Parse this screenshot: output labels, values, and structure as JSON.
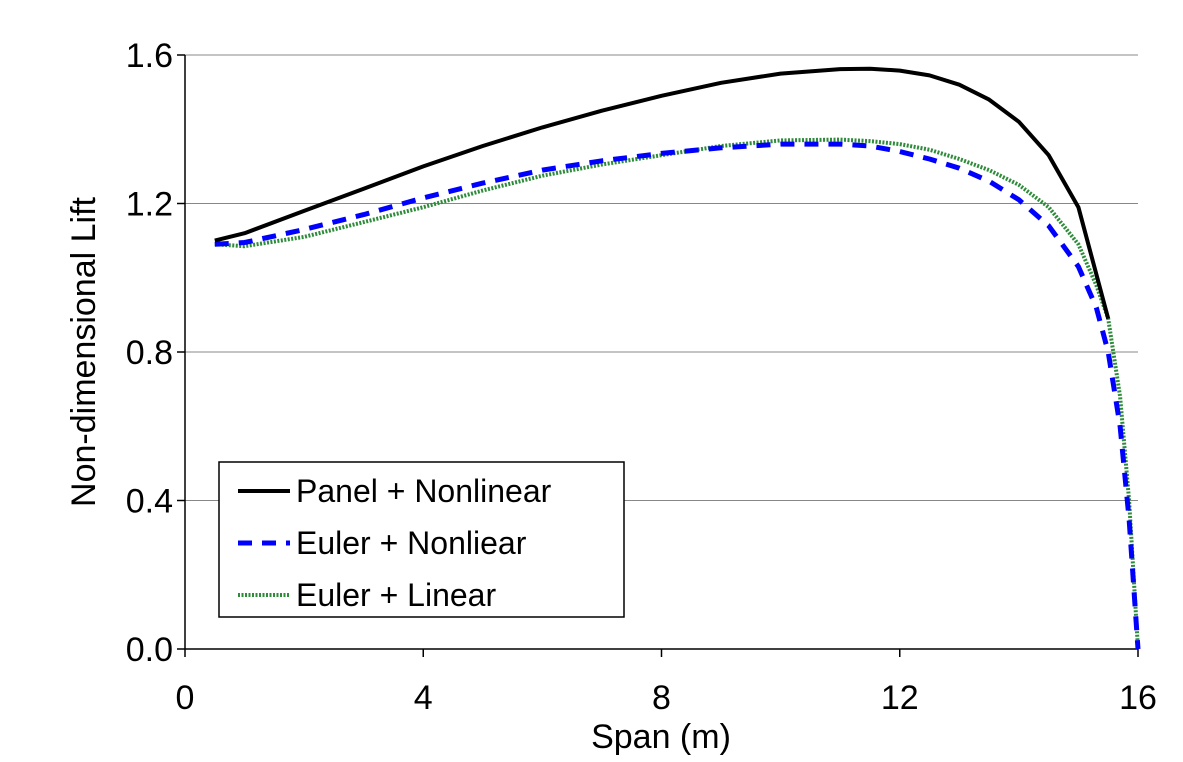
{
  "chart_data": {
    "type": "line",
    "xlabel": "Span (m)",
    "ylabel": "Non-dimensional Lift",
    "xlim": [
      0,
      16
    ],
    "ylim": [
      0,
      1.6
    ],
    "xticks": [
      "0",
      "4",
      "8",
      "12",
      "16"
    ],
    "yticks": [
      "0.0",
      "0.4",
      "0.8",
      "1.2",
      "1.6"
    ],
    "grid": "horizontal",
    "legend_position": "bottom-left",
    "series": [
      {
        "name": "Panel + Nonlinear",
        "color": "#000000",
        "style": "solid",
        "x": [
          0.5,
          1.0,
          2.0,
          3.0,
          4.0,
          5.0,
          6.0,
          7.0,
          8.0,
          9.0,
          10.0,
          11.0,
          11.5,
          12.0,
          12.5,
          13.0,
          13.5,
          14.0,
          14.5,
          15.0,
          15.5
        ],
        "y": [
          1.1,
          1.12,
          1.18,
          1.24,
          1.3,
          1.355,
          1.405,
          1.45,
          1.49,
          1.525,
          1.55,
          1.562,
          1.563,
          1.558,
          1.545,
          1.52,
          1.48,
          1.42,
          1.33,
          1.19,
          0.89
        ]
      },
      {
        "name": "Euler + Nonliear",
        "color": "#0000ff",
        "style": "dashed",
        "x": [
          0.5,
          1.0,
          2.0,
          3.0,
          4.0,
          5.0,
          6.0,
          7.0,
          8.0,
          9.0,
          10.0,
          11.0,
          11.5,
          12.0,
          12.5,
          13.0,
          13.5,
          14.0,
          14.5,
          15.0,
          15.3,
          15.5,
          15.7,
          15.85,
          16.0
        ],
        "y": [
          1.09,
          1.095,
          1.13,
          1.17,
          1.215,
          1.255,
          1.29,
          1.315,
          1.335,
          1.35,
          1.36,
          1.36,
          1.355,
          1.34,
          1.32,
          1.295,
          1.26,
          1.21,
          1.14,
          1.03,
          0.92,
          0.8,
          0.6,
          0.35,
          0.0
        ]
      },
      {
        "name": "Euler + Linear",
        "color": "#2e8b3a",
        "style": "textured",
        "x": [
          0.5,
          1.0,
          2.0,
          3.0,
          4.0,
          5.0,
          6.0,
          7.0,
          8.0,
          9.0,
          10.0,
          11.0,
          11.5,
          12.0,
          12.5,
          13.0,
          13.5,
          14.0,
          14.5,
          15.0,
          15.3,
          15.5,
          15.7,
          15.85,
          16.0
        ],
        "y": [
          1.09,
          1.085,
          1.11,
          1.15,
          1.19,
          1.235,
          1.275,
          1.305,
          1.33,
          1.355,
          1.37,
          1.372,
          1.368,
          1.36,
          1.345,
          1.32,
          1.29,
          1.25,
          1.19,
          1.09,
          0.98,
          0.89,
          0.68,
          0.4,
          0.0
        ]
      }
    ]
  }
}
